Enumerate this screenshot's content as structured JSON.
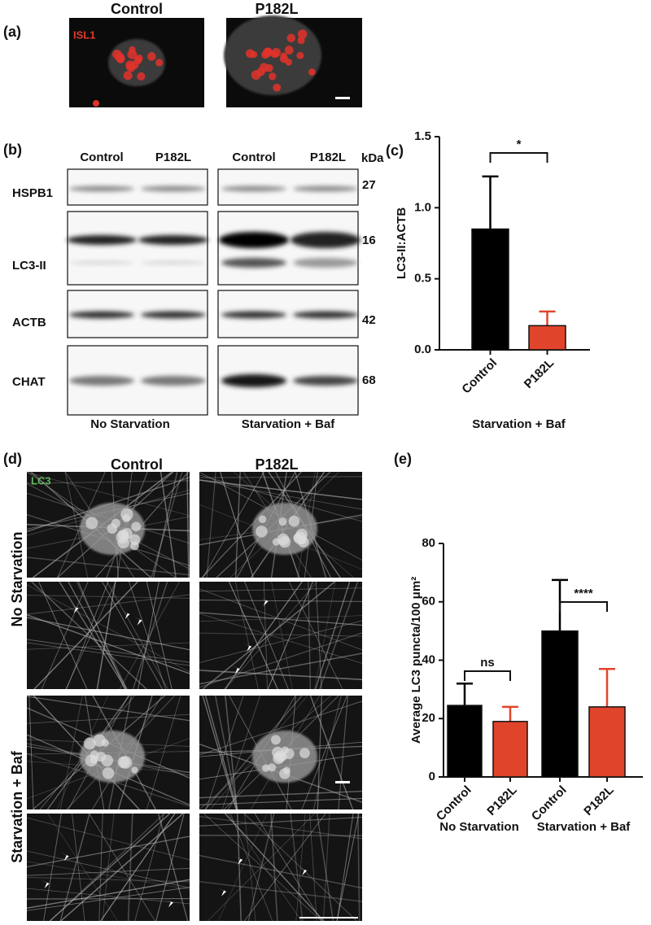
{
  "panel_labels": [
    "(a)",
    "(b)",
    "(c)",
    "(d)",
    "(e)"
  ],
  "panel_a": {
    "columns": [
      "Control",
      "P182L"
    ],
    "stain": "ISL1"
  },
  "panel_b": {
    "columns": [
      "Control",
      "P182L",
      "Control",
      "P182L"
    ],
    "kda_header": "kDa",
    "rows": [
      {
        "label": "HSPB1",
        "kda": "27"
      },
      {
        "label": "LC3-II",
        "kda": "16"
      },
      {
        "label": "ACTB",
        "kda": "42"
      },
      {
        "label": "CHAT",
        "kda": "68"
      }
    ],
    "conditions": [
      "No Starvation",
      "Starvation + Baf"
    ]
  },
  "panel_d": {
    "columns": [
      "Control",
      "P182L"
    ],
    "stain": "LC3",
    "rows": [
      "No Starvation",
      "Starvation  + Baf"
    ]
  },
  "chart_data": [
    {
      "type": "bar",
      "categories": [
        "Control",
        "P182L"
      ],
      "values": [
        0.85,
        0.17
      ],
      "errors": [
        0.37,
        0.1
      ],
      "colors": [
        "#000000",
        "#e0452b"
      ],
      "ylabel": "LC3-II:ACTB",
      "xlabel": "Starvation + Baf",
      "ylim": [
        0,
        1.5
      ],
      "yticks": [
        {
          "value": 0,
          "label": "0.0"
        },
        0.5,
        {
          "value": 1,
          "label": "1.0"
        },
        1.5
      ],
      "annotations": [
        "*"
      ]
    },
    {
      "type": "bar",
      "categories": [
        "Control",
        "P182L",
        "Control",
        "P182L"
      ],
      "values": [
        24.5,
        19,
        50,
        24
      ],
      "errors": [
        7.5,
        5,
        17.5,
        13
      ],
      "colors": [
        "#000000",
        "#e0452b",
        "#000000",
        "#e0452b"
      ],
      "ylabel": "Average LC3 puncta/100 μm²",
      "groups": [
        "No Starvation",
        "Starvation + Baf"
      ],
      "ylim": [
        0,
        80
      ],
      "yticks": [
        0,
        20,
        40,
        60,
        80
      ],
      "annotations": [
        "ns",
        "****"
      ]
    }
  ]
}
